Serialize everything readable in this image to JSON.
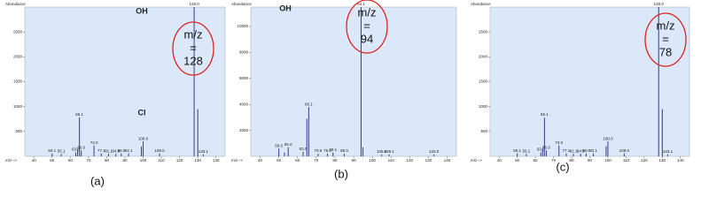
{
  "chart_data": [
    {
      "type": "bar",
      "y_label": "Abundance",
      "x_label": "m/z-->",
      "color": "#3a3a8a",
      "x": [
        50,
        55,
        63,
        64,
        65,
        66,
        73,
        77,
        81,
        85,
        88,
        92,
        99,
        100,
        109,
        128,
        130,
        133
      ],
      "values": [
        60,
        50,
        80,
        150,
        780,
        120,
        220,
        60,
        50,
        50,
        60,
        60,
        200,
        300,
        60,
        3000,
        950,
        40
      ],
      "x_labels": [
        "50.1",
        "55.1",
        "63.0",
        null,
        "65.1",
        "66.0",
        "73.0",
        "77.1",
        "81.1",
        "84.9",
        "88.0",
        "92.1",
        null,
        "100.0",
        "109.0",
        "128.0",
        null,
        "133.1"
      ],
      "xlim": [
        35,
        145
      ],
      "xticks": [
        40,
        50,
        60,
        70,
        80,
        90,
        100,
        110,
        120,
        130,
        140
      ],
      "ylim": [
        0,
        3000
      ],
      "yticks": [
        500,
        1000,
        1500,
        2000,
        2500
      ],
      "circle_text": [
        "m/z",
        "=",
        "128"
      ],
      "structure_labels": [
        "OH",
        "Cl"
      ],
      "panel_label": "(a)"
    },
    {
      "type": "bar",
      "y_label": "Abundance",
      "x_label": "m/z-->",
      "color": "#3a3a8a",
      "x": [
        50,
        53,
        55,
        63,
        65,
        66,
        71,
        76,
        79,
        85,
        94,
        95,
        105,
        109,
        133
      ],
      "values": [
        600,
        300,
        700,
        350,
        2900,
        3800,
        200,
        200,
        300,
        200,
        11500,
        700,
        150,
        150,
        150
      ],
      "x_labels": [
        "50.0",
        null,
        "55.0",
        "63.0",
        null,
        "66.1",
        "70.9",
        "75.8",
        "79.1",
        "85.0",
        "94.1",
        null,
        "105.0",
        "109.1",
        "133.0"
      ],
      "xlim": [
        35,
        145
      ],
      "xticks": [
        40,
        50,
        60,
        70,
        80,
        90,
        100,
        110,
        120,
        130,
        140
      ],
      "ylim": [
        0,
        11500
      ],
      "yticks": [
        2000,
        4000,
        6000,
        8000,
        10000
      ],
      "circle_text": [
        "m/z",
        "=",
        "94"
      ],
      "structure_labels": [
        "OH"
      ],
      "panel_label": "(b)"
    },
    {
      "type": "bar",
      "y_label": "Abundance",
      "x_label": "m/z-->",
      "color": "#3a3a8a",
      "x": [
        50,
        55,
        63,
        64,
        65,
        66,
        73,
        77,
        81,
        85,
        88,
        92,
        99,
        100,
        109,
        128,
        130,
        133
      ],
      "values": [
        60,
        50,
        80,
        150,
        780,
        120,
        220,
        60,
        50,
        50,
        60,
        60,
        200,
        300,
        60,
        3000,
        950,
        40
      ],
      "x_labels": [
        "50.1",
        "55.1",
        "63.0",
        null,
        "65.1",
        "66.0",
        "73.0",
        "77.1",
        "81.1",
        "84.9",
        "88.0",
        "92.1",
        null,
        "100.0",
        "109.0",
        "128.0",
        null,
        "133.1"
      ],
      "xlim": [
        35,
        145
      ],
      "xticks": [
        40,
        50,
        60,
        70,
        80,
        90,
        100,
        110,
        120,
        130,
        140
      ],
      "ylim": [
        0,
        3000
      ],
      "yticks": [
        500,
        1000,
        1500,
        2000,
        2500
      ],
      "circle_text": [
        "m/z",
        "=",
        "78"
      ],
      "structure_labels": [],
      "panel_label": "(c)"
    }
  ]
}
